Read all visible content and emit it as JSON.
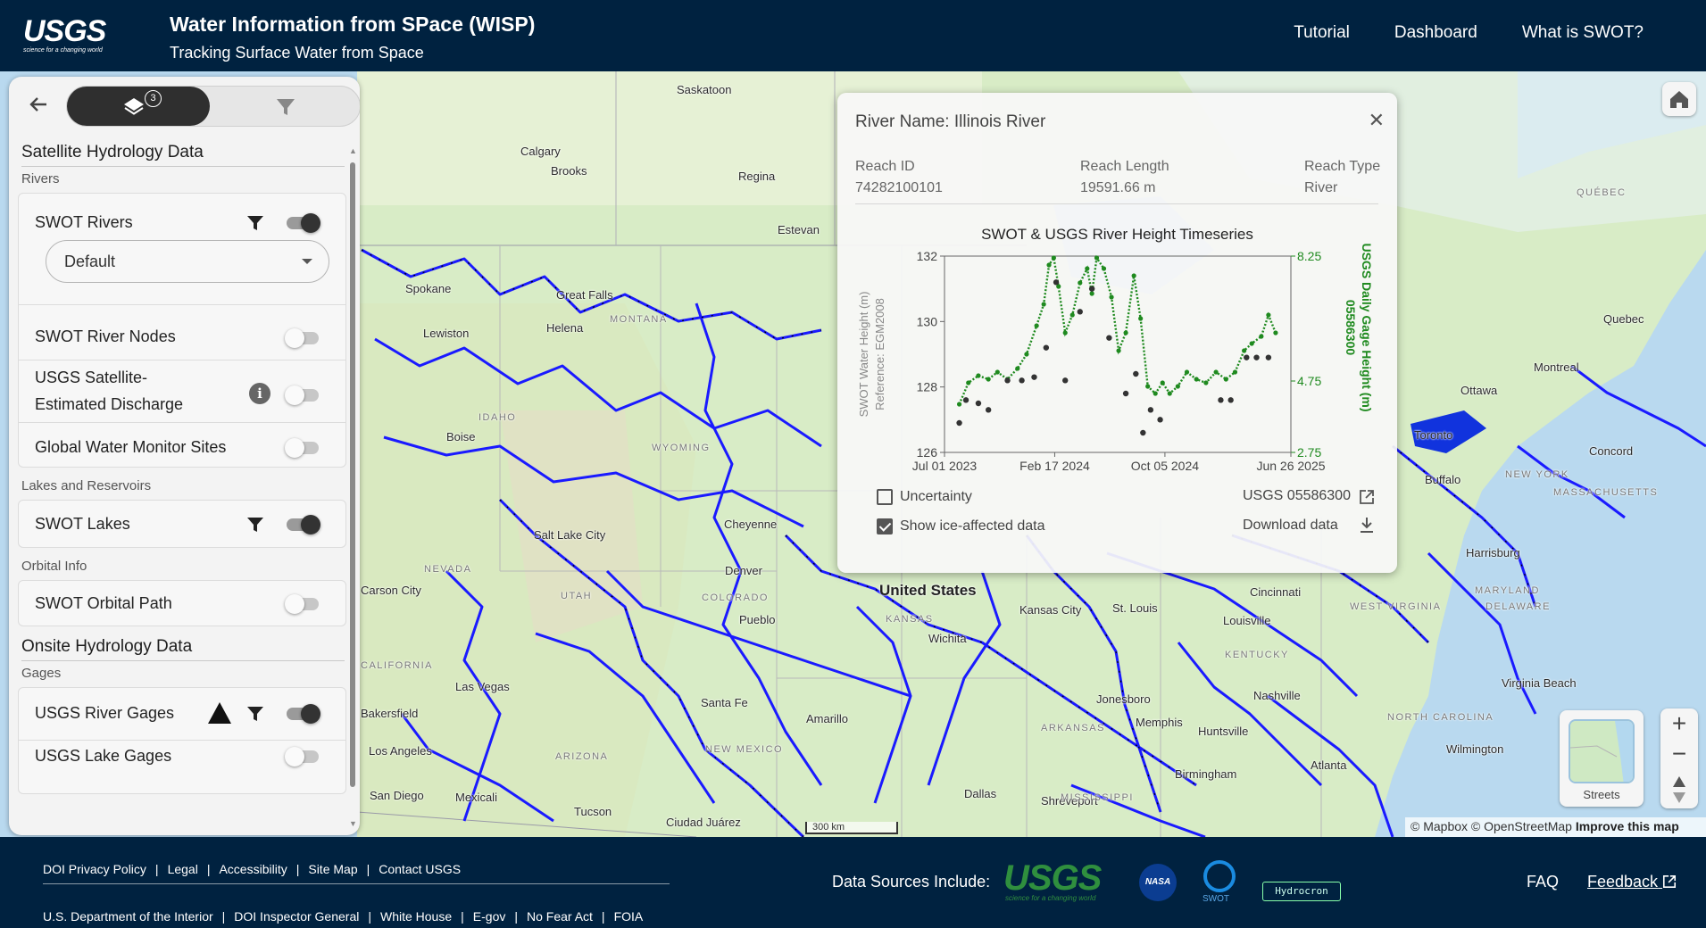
{
  "header": {
    "logo_text": "USGS",
    "logo_tagline": "science for a changing world",
    "title": "Water Information from SPace (WISP)",
    "subtitle": "Tracking Surface Water from Space",
    "nav": [
      "Tutorial",
      "Dashboard",
      "What is SWOT?"
    ]
  },
  "panel": {
    "layers_badge": "3",
    "section1_title": "Satellite Hydrology Data",
    "rivers_label": "Rivers",
    "swot_rivers": {
      "label": "SWOT Rivers",
      "enabled": true,
      "style_value": "Default"
    },
    "swot_river_nodes": {
      "label": "SWOT River Nodes",
      "enabled": false
    },
    "usgs_discharge": {
      "label_line1": "USGS Satellite-",
      "label_line2": "Estimated Discharge",
      "enabled": false
    },
    "global_water": {
      "label": "Global Water Monitor Sites",
      "enabled": false
    },
    "lakes_label": "Lakes and Reservoirs",
    "swot_lakes": {
      "label": "SWOT Lakes",
      "enabled": true
    },
    "orbital_label": "Orbital Info",
    "swot_orbital": {
      "label": "SWOT Orbital Path",
      "enabled": false
    },
    "section2_title": "Onsite Hydrology Data",
    "gages_label": "Gages",
    "usgs_river_gages": {
      "label": "USGS River Gages",
      "enabled": true
    },
    "usgs_lake_gages": {
      "label": "USGS Lake Gages",
      "enabled": false
    }
  },
  "popup": {
    "river_name": "River Name: Illinois River",
    "reach_id_label": "Reach ID",
    "reach_id": "74282100101",
    "reach_length_label": "Reach Length",
    "reach_length": "19591.66 m",
    "reach_type_label": "Reach Type",
    "reach_type": "River",
    "uncertainty_label": "Uncertainty",
    "uncertainty_checked": false,
    "ice_label": "Show ice-affected data",
    "ice_checked": true,
    "gage_link": "USGS 05586300",
    "download_label": "Download data"
  },
  "chart_data": {
    "type": "scatter",
    "title": "SWOT & USGS River Height Timeseries",
    "x_ticks": [
      "Jul 01 2023",
      "Feb 17 2024",
      "Oct 05 2024",
      "Jun 26 2025"
    ],
    "ylabel": "SWOT Water Height (m)",
    "ylabel_sub": "Reference: EGM2008",
    "ylim": [
      126,
      132
    ],
    "y_ticks": [
      126,
      128,
      130,
      132
    ],
    "y2label": "USGS Daily Gage Height (m)",
    "y2label_sub": "05586300",
    "y2lim": [
      2.75,
      8.25
    ],
    "y2_ticks": [
      2.75,
      4.75,
      8.25
    ],
    "series": [
      {
        "name": "SWOT",
        "color": "#333333",
        "values": [
          {
            "x": "2023-08-01",
            "y": 126.9
          },
          {
            "x": "2023-08-15",
            "y": 127.6
          },
          {
            "x": "2023-09-10",
            "y": 127.5
          },
          {
            "x": "2023-10-01",
            "y": 127.3
          },
          {
            "x": "2023-11-10",
            "y": 128.2
          },
          {
            "x": "2023-12-10",
            "y": 128.2
          },
          {
            "x": "2024-01-05",
            "y": 128.3
          },
          {
            "x": "2024-01-30",
            "y": 129.2
          },
          {
            "x": "2024-02-20",
            "y": 131.2
          },
          {
            "x": "2024-03-10",
            "y": 128.2
          },
          {
            "x": "2024-04-10",
            "y": 130.3
          },
          {
            "x": "2024-05-05",
            "y": 131.0
          },
          {
            "x": "2024-06-10",
            "y": 129.5
          },
          {
            "x": "2024-07-15",
            "y": 127.8
          },
          {
            "x": "2024-08-05",
            "y": 128.4
          },
          {
            "x": "2024-08-20",
            "y": 126.6
          },
          {
            "x": "2024-09-05",
            "y": 127.3
          },
          {
            "x": "2024-09-25",
            "y": 127.0
          },
          {
            "x": "2025-01-30",
            "y": 127.6
          },
          {
            "x": "2025-02-20",
            "y": 127.6
          },
          {
            "x": "2025-03-25",
            "y": 128.9
          },
          {
            "x": "2025-04-15",
            "y": 128.9
          },
          {
            "x": "2025-05-10",
            "y": 128.9
          }
        ]
      },
      {
        "name": "USGS",
        "color": "#1f8a1f",
        "values": [
          {
            "x": "2023-08-01",
            "y": 4.1
          },
          {
            "x": "2023-08-20",
            "y": 4.7
          },
          {
            "x": "2023-09-10",
            "y": 4.9
          },
          {
            "x": "2023-10-01",
            "y": 4.8
          },
          {
            "x": "2023-10-20",
            "y": 5.0
          },
          {
            "x": "2023-11-10",
            "y": 4.8
          },
          {
            "x": "2023-12-01",
            "y": 5.1
          },
          {
            "x": "2023-12-20",
            "y": 5.5
          },
          {
            "x": "2024-01-10",
            "y": 6.3
          },
          {
            "x": "2024-01-25",
            "y": 6.9
          },
          {
            "x": "2024-02-05",
            "y": 8.0
          },
          {
            "x": "2024-02-15",
            "y": 8.2
          },
          {
            "x": "2024-02-25",
            "y": 7.4
          },
          {
            "x": "2024-03-10",
            "y": 6.1
          },
          {
            "x": "2024-03-25",
            "y": 6.6
          },
          {
            "x": "2024-04-10",
            "y": 7.5
          },
          {
            "x": "2024-04-25",
            "y": 7.9
          },
          {
            "x": "2024-05-05",
            "y": 7.2
          },
          {
            "x": "2024-05-15",
            "y": 8.2
          },
          {
            "x": "2024-05-30",
            "y": 7.9
          },
          {
            "x": "2024-06-15",
            "y": 7.1
          },
          {
            "x": "2024-06-30",
            "y": 5.6
          },
          {
            "x": "2024-07-15",
            "y": 6.1
          },
          {
            "x": "2024-08-01",
            "y": 7.7
          },
          {
            "x": "2024-08-15",
            "y": 6.5
          },
          {
            "x": "2024-08-30",
            "y": 4.6
          },
          {
            "x": "2024-09-15",
            "y": 4.4
          },
          {
            "x": "2024-09-30",
            "y": 4.7
          },
          {
            "x": "2024-10-15",
            "y": 4.4
          },
          {
            "x": "2024-11-01",
            "y": 4.6
          },
          {
            "x": "2024-11-20",
            "y": 5.0
          },
          {
            "x": "2024-12-10",
            "y": 4.8
          },
          {
            "x": "2024-12-30",
            "y": 4.7
          },
          {
            "x": "2025-01-20",
            "y": 5.0
          },
          {
            "x": "2025-02-10",
            "y": 4.8
          },
          {
            "x": "2025-03-01",
            "y": 5.0
          },
          {
            "x": "2025-03-20",
            "y": 5.6
          },
          {
            "x": "2025-04-05",
            "y": 5.8
          },
          {
            "x": "2025-04-25",
            "y": 6.0
          },
          {
            "x": "2025-05-10",
            "y": 6.6
          },
          {
            "x": "2025-05-25",
            "y": 6.1
          }
        ]
      }
    ]
  },
  "map": {
    "labels": [
      "Saskatoon",
      "Calgary",
      "Brooks",
      "Regina",
      "Estevan",
      "Spokane",
      "Great Falls",
      "Helena",
      "MONTANA",
      "Lewiston",
      "IDAHO",
      "Boise",
      "WYOMING",
      "Salt Lake City",
      "Cheyenne",
      "NEVADA",
      "UTAH",
      "Denver",
      "COLORADO",
      "Pueblo",
      "KANSAS",
      "Wichita",
      "Kansas City",
      "St. Louis",
      "Cincinnati",
      "Louisville",
      "KENTUCKY",
      "WEST VIRGINIA",
      "Memphis",
      "Jonesboro",
      "Nashville",
      "Huntsville",
      "Birmingham",
      "Atlanta",
      "Dallas",
      "Shreveport",
      "Las Vegas",
      "Los Angeles",
      "San Diego",
      "Mexicali",
      "Tucson",
      "Ciudad Juárez",
      "Santa Fe",
      "NEW MEXICO",
      "ARIZONA",
      "Amarillo",
      "Bakersfield",
      "CALIFORNIA",
      "Carson City",
      "Ottawa",
      "Montreal",
      "Quebec",
      "QUÉBEC",
      "Toronto",
      "Buffalo",
      "NEW YORK",
      "Concord",
      "MASSACHUSETTS",
      "Harrisburg",
      "MARYLAND",
      "DELAWARE",
      "Virginia Beach",
      "NORTH CAROLINA",
      "Wilmington",
      "United States",
      "MISSISSIPPI",
      "ARKANSAS"
    ],
    "scale": "300 km",
    "attribution_text": "© Mapbox © OpenStreetMap",
    "attribution_link": "Improve this map",
    "basemap_label": "Streets"
  },
  "footer": {
    "links_row1": [
      "DOI Privacy Policy",
      "Legal",
      "Accessibility",
      "Site Map",
      "Contact USGS"
    ],
    "links_row2": [
      "U.S. Department of the Interior",
      "DOI Inspector General",
      "White House",
      "E-gov",
      "No Fear Act",
      "FOIA"
    ],
    "data_sources_label": "Data Sources Include:",
    "source_usgs": "USGS",
    "source_usgs_tag": "science for a changing world",
    "source_nasa": "NASA",
    "source_swot": "SWOT",
    "source_hydrocron": "Hydrocron",
    "faq": "FAQ",
    "feedback": "Feedback"
  }
}
